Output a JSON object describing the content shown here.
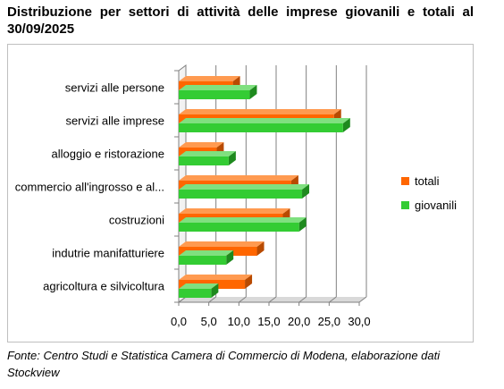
{
  "title": "Distribuzione per settori di attività delle imprese giovanili e totali al 30/09/2025",
  "source": "Fonte: Centro Studi e Statistica Camera di Commercio di Modena, elaborazione dati Stockview",
  "colors": {
    "totali_front": "#ff6600",
    "totali_top": "#ff9a50",
    "totali_side": "#b84a00",
    "giovanili_front": "#33cc33",
    "giovanili_top": "#7fe07f",
    "giovanili_side": "#1e8a1e",
    "axis": "#808080",
    "floor": "#d9d9d9"
  },
  "chart_data": {
    "type": "bar",
    "orientation": "horizontal",
    "style": "3d-clustered",
    "categories": [
      "servizi alle persone",
      "servizi alle imprese",
      "alloggio e ristorazione",
      "commercio all'ingrosso e al...",
      "costruzioni",
      "indutrie manifatturiere",
      "agricoltura e silvicoltura"
    ],
    "series": [
      {
        "name": "totali",
        "values": [
          9.0,
          25.8,
          6.3,
          18.7,
          17.3,
          13.0,
          11.0
        ]
      },
      {
        "name": "giovanili",
        "values": [
          11.8,
          27.3,
          8.3,
          20.5,
          20.0,
          7.9,
          5.4
        ]
      }
    ],
    "xlim": [
      0,
      30
    ],
    "xticks": [
      "0,0",
      "5,0",
      "10,0",
      "15,0",
      "20,0",
      "25,0",
      "30,0"
    ],
    "grid": true,
    "legend": "right"
  }
}
